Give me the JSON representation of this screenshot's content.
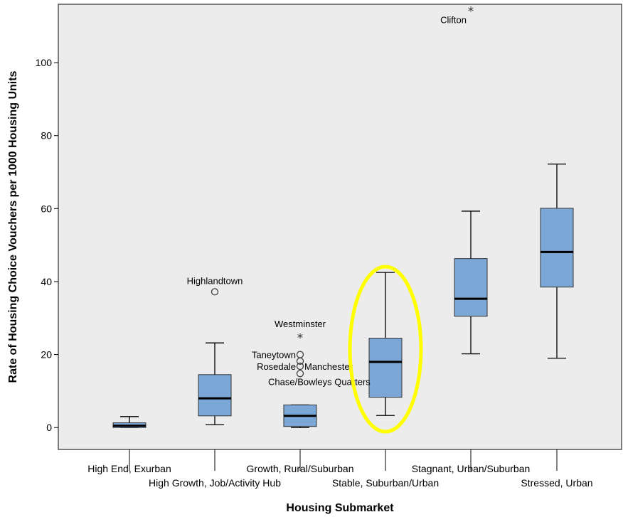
{
  "chart_data": {
    "type": "boxplot",
    "xlabel": "Housing Submarket",
    "ylabel": "Rate of Housing Choice Vouchers per 1000 Housing Units",
    "ylim": [
      -6,
      116
    ],
    "yticks": [
      0,
      20,
      40,
      60,
      80,
      100
    ],
    "grid": false,
    "box_color": "#7ba7d6",
    "highlight_color": "#ffff00",
    "highlighted_category": "Stable, Suburban/Urban",
    "categories": [
      "High End, Exurban",
      "High Growth, Job/Activity Hub",
      "Growth, Rural/Suburban",
      "Stable, Suburban/Urban",
      "Stagnant, Urban/Suburban",
      "Stressed, Urban"
    ],
    "boxes": [
      {
        "category": "High End, Exurban",
        "whisker_low": 0,
        "q1": 0,
        "median": 0.5,
        "q3": 1.3,
        "whisker_high": 3,
        "outliers": []
      },
      {
        "category": "High Growth, Job/Activity Hub",
        "whisker_low": 0.8,
        "q1": 3.2,
        "median": 8,
        "q3": 14.5,
        "whisker_high": 23.2,
        "outliers": [
          {
            "value": 37.2,
            "label": "Highlandtown",
            "marker": "circle"
          }
        ]
      },
      {
        "category": "Growth, Rural/Suburban",
        "whisker_low": 0,
        "q1": 0.3,
        "median": 3.2,
        "q3": 6.2,
        "whisker_high": 6.2,
        "outliers": [
          {
            "value": 25,
            "label": "Westminster",
            "marker": "star"
          },
          {
            "value": 20,
            "label": "Taneytown",
            "marker": "circle"
          },
          {
            "value": 18.2,
            "label": "",
            "marker": "circle"
          },
          {
            "value": 16.8,
            "label": "Rosedale",
            "marker": "circle"
          },
          {
            "value": 14.8,
            "label": "",
            "marker": "circle"
          }
        ]
      },
      {
        "category": "Stable, Suburban/Urban",
        "whisker_low": 3.3,
        "q1": 8.3,
        "median": 18,
        "q3": 24.5,
        "whisker_high": 42.5,
        "outliers": []
      },
      {
        "category": "Stagnant, Urban/Suburban",
        "whisker_low": 20.2,
        "q1": 30.5,
        "median": 35.3,
        "q3": 46.3,
        "whisker_high": 59.3,
        "outliers": [
          {
            "value": 114.5,
            "label": "Clifton",
            "marker": "star"
          }
        ]
      },
      {
        "category": "Stressed, Urban",
        "whisker_low": 19,
        "q1": 38.5,
        "median": 48.1,
        "q3": 60.1,
        "whisker_high": 72.2,
        "outliers": []
      }
    ],
    "free_labels": [
      {
        "text": "Manchester",
        "value": 16.8
      },
      {
        "text": "Chase/Bowleys Quarters",
        "value": 12.6
      }
    ]
  }
}
